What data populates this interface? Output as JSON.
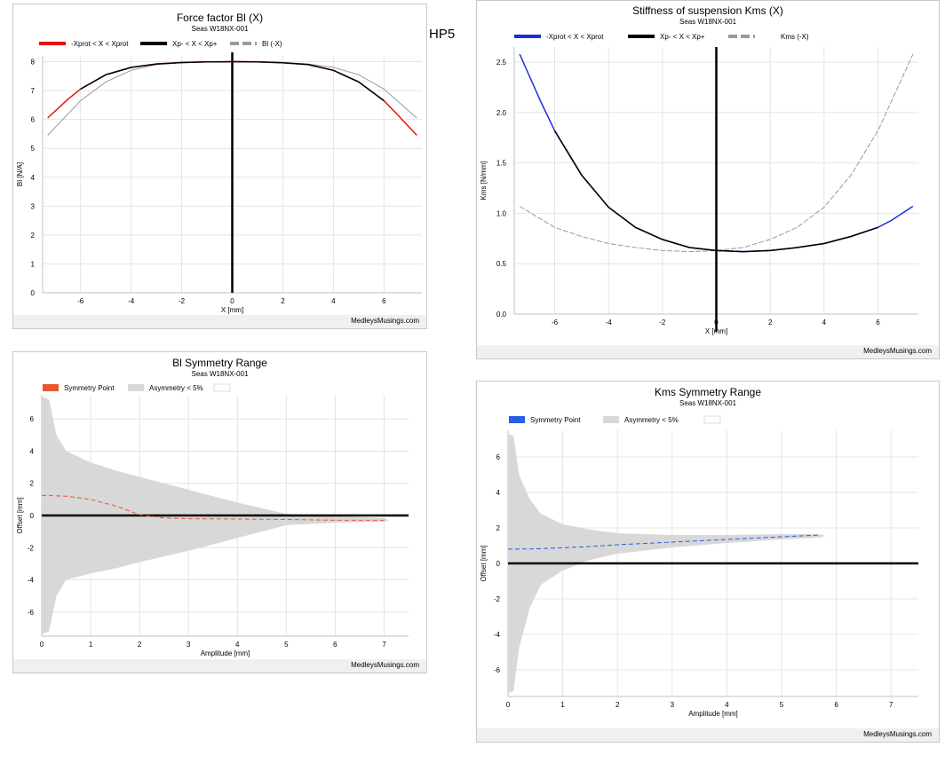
{
  "side_label": "HP5",
  "charts": {
    "bl": {
      "title": "Force factor Bl (X)",
      "subtitle": "Seas W18NX-001",
      "footer": "MedleysMusings.com",
      "legend": [
        "-Xprot < X < Xprot",
        "Xp- < X < Xp+",
        "Bl (-X)"
      ],
      "xlabel": "X [mm]",
      "ylabel": "Bl [N/A]",
      "xticks": [
        "-6",
        "-4",
        "-2",
        "0",
        "2",
        "4",
        "6"
      ],
      "yticks": [
        "0",
        "1",
        "2",
        "3",
        "4",
        "5",
        "6",
        "7",
        "8"
      ]
    },
    "kms": {
      "title": "Stiffness of suspension Kms (X)",
      "subtitle": "Seas W18NX-001",
      "footer": "MedleysMusings.com",
      "legend": [
        "-Xprot < X < Xprot",
        "Xp- < X < Xp+",
        "Kms (-X)"
      ],
      "xlabel": "X [mm]",
      "ylabel": "Kms [N/mm]",
      "xticks": [
        "-6",
        "-4",
        "-2",
        "0",
        "2",
        "4",
        "6"
      ],
      "yticks": [
        "0.0",
        "0.5",
        "1.0",
        "1.5",
        "2.0",
        "2.5"
      ]
    },
    "blsym": {
      "title": "Bl Symmetry Range",
      "subtitle": "Seas W18NX-001",
      "footer": "MedleysMusings.com",
      "legend": [
        "Symmetry Point",
        "Asymmetry < 5%"
      ],
      "xlabel": "Amplitude [mm]",
      "ylabel": "Offset [mm]",
      "xticks": [
        "0",
        "1",
        "2",
        "3",
        "4",
        "5",
        "6",
        "7"
      ],
      "yticks": [
        "-6",
        "-4",
        "-2",
        "0",
        "2",
        "4",
        "6"
      ]
    },
    "kmssym": {
      "title": "Kms Symmetry Range",
      "subtitle": "Seas W18NX-001",
      "footer": "MedleysMusings.com",
      "legend": [
        "Symmetry Point",
        "Asymmetry < 5%"
      ],
      "xlabel": "Amplitude [mm]",
      "ylabel": "Offset [mm]",
      "xticks": [
        "0",
        "1",
        "2",
        "3",
        "4",
        "5",
        "6",
        "7"
      ],
      "yticks": [
        "-6",
        "-4",
        "-2",
        "0",
        "2",
        "4",
        "6"
      ]
    }
  },
  "colors": {
    "red": "#e8120c",
    "black": "#000000",
    "gray": "#9a9a9a",
    "blue": "#1a2fd8",
    "orange": "#e8562a",
    "band": "#d8d8d8",
    "sym_blue": "#2a5fe0"
  },
  "chart_data": [
    {
      "type": "line",
      "title": "Force factor Bl (X)",
      "xlabel": "X [mm]",
      "ylabel": "Bl [N/A]",
      "xlim": [
        -7.5,
        7.5
      ],
      "ylim": [
        0,
        8.2
      ],
      "series": [
        {
          "name": "-Xprot < X < Xprot",
          "x": [
            -7.3,
            -6.5,
            -6.0,
            -5.0,
            -4.0,
            -3.0,
            -2.0,
            -1.0,
            0,
            1.0,
            2.0,
            3.0,
            4.0,
            5.0,
            6.0,
            6.5,
            7.3
          ],
          "y": [
            6.05,
            6.7,
            7.05,
            7.55,
            7.8,
            7.92,
            7.97,
            7.99,
            8.0,
            7.99,
            7.96,
            7.9,
            7.7,
            7.3,
            6.65,
            6.2,
            5.45
          ]
        },
        {
          "name": "Xp- < X < Xp+",
          "x": [
            -6.0,
            -5.0,
            -4.0,
            -3.0,
            -2.0,
            -1.0,
            0,
            1.0,
            2.0,
            3.0,
            4.0,
            5.0,
            6.0
          ],
          "y": [
            7.05,
            7.55,
            7.8,
            7.92,
            7.97,
            7.99,
            8.0,
            7.99,
            7.96,
            7.9,
            7.7,
            7.3,
            6.65
          ]
        },
        {
          "name": "Bl (-X)",
          "x": [
            -7.3,
            -6.0,
            -5.0,
            -4.0,
            -3.0,
            -2.0,
            -1.0,
            0,
            1.0,
            2.0,
            3.0,
            4.0,
            5.0,
            6.0,
            7.3
          ],
          "y": [
            5.45,
            6.65,
            7.3,
            7.7,
            7.9,
            7.96,
            7.99,
            8.0,
            7.99,
            7.97,
            7.92,
            7.8,
            7.55,
            7.05,
            6.05
          ]
        }
      ]
    },
    {
      "type": "line",
      "title": "Stiffness of suspension Kms (X)",
      "xlabel": "X [mm]",
      "ylabel": "Kms [N/mm]",
      "xlim": [
        -7.5,
        7.5
      ],
      "ylim": [
        0,
        2.65
      ],
      "series": [
        {
          "name": "-Xprot < X < Xprot",
          "x": [
            -7.3,
            -6.5,
            -6.0,
            -5.0,
            -4.0,
            -3.0,
            -2.0,
            -1.0,
            0,
            1.0,
            2.0,
            3.0,
            4.0,
            5.0,
            6.0,
            6.5,
            7.3
          ],
          "y": [
            2.58,
            2.1,
            1.82,
            1.38,
            1.06,
            0.86,
            0.74,
            0.66,
            0.63,
            0.62,
            0.63,
            0.66,
            0.7,
            0.77,
            0.86,
            0.93,
            1.07
          ]
        },
        {
          "name": "Xp- < X < Xp+",
          "x": [
            -6.0,
            -5.0,
            -4.0,
            -3.0,
            -2.0,
            -1.0,
            0,
            1.0,
            2.0,
            3.0,
            4.0,
            5.0,
            6.0
          ],
          "y": [
            1.82,
            1.38,
            1.06,
            0.86,
            0.74,
            0.66,
            0.63,
            0.62,
            0.63,
            0.66,
            0.7,
            0.77,
            0.86
          ]
        },
        {
          "name": "Kms (-X)",
          "x": [
            -7.3,
            -6.0,
            -5.0,
            -4.0,
            -3.0,
            -2.0,
            -1.0,
            0,
            1.0,
            2.0,
            3.0,
            4.0,
            5.0,
            6.0,
            7.3
          ],
          "y": [
            1.07,
            0.86,
            0.77,
            0.7,
            0.66,
            0.63,
            0.62,
            0.63,
            0.66,
            0.74,
            0.86,
            1.06,
            1.38,
            1.82,
            2.58
          ]
        }
      ]
    },
    {
      "type": "area",
      "title": "Bl Symmetry Range",
      "xlabel": "Amplitude [mm]",
      "ylabel": "Offset [mm]",
      "xlim": [
        0,
        7.5
      ],
      "ylim": [
        -7.5,
        7.5
      ],
      "series": [
        {
          "name": "Symmetry Point",
          "x": [
            0,
            0.5,
            1.0,
            1.5,
            2.0,
            2.5,
            3.0,
            4.0,
            5.0,
            6.0,
            7.0
          ],
          "y": [
            1.25,
            1.2,
            1.0,
            0.6,
            0.05,
            -0.15,
            -0.2,
            -0.22,
            -0.25,
            -0.3,
            -0.3
          ]
        },
        {
          "name": "Asymmetry < 5%",
          "x": [
            0.0,
            0.15,
            0.3,
            0.5,
            1.0,
            1.5,
            2.0,
            3.0,
            4.0,
            4.5,
            5.0,
            6.0,
            7.0,
            7.1
          ],
          "upper": [
            7.4,
            7.2,
            5.0,
            4.0,
            3.3,
            2.8,
            2.4,
            1.6,
            0.8,
            0.45,
            0.1,
            -0.05,
            -0.15,
            -0.3
          ],
          "lower": [
            -7.4,
            -7.2,
            -5.0,
            -4.0,
            -3.6,
            -3.3,
            -2.9,
            -2.2,
            -1.4,
            -1.0,
            -0.6,
            -0.45,
            -0.4,
            -0.3
          ]
        }
      ]
    },
    {
      "type": "area",
      "title": "Kms Symmetry Range",
      "xlabel": "Amplitude [mm]",
      "ylabel": "Offset [mm]",
      "xlim": [
        0,
        7.5
      ],
      "ylim": [
        -7.5,
        7.5
      ],
      "series": [
        {
          "name": "Symmetry Point",
          "x": [
            0,
            0.5,
            1.0,
            1.5,
            2.0,
            3.0,
            4.0,
            5.0,
            5.7
          ],
          "y": [
            0.8,
            0.82,
            0.88,
            0.95,
            1.05,
            1.2,
            1.35,
            1.5,
            1.6
          ]
        },
        {
          "name": "Asymmetry < 5%",
          "x": [
            0.0,
            0.1,
            0.2,
            0.4,
            0.6,
            1.0,
            1.5,
            2.0,
            3.0,
            4.0,
            5.0,
            5.7,
            5.8
          ],
          "upper": [
            7.3,
            7.2,
            5.0,
            3.6,
            2.8,
            2.2,
            1.9,
            1.7,
            1.6,
            1.6,
            1.65,
            1.65,
            1.55
          ],
          "lower": [
            -7.3,
            -7.2,
            -4.8,
            -2.5,
            -1.2,
            -0.4,
            0.2,
            0.55,
            0.9,
            1.15,
            1.35,
            1.45,
            1.55
          ]
        }
      ]
    }
  ]
}
